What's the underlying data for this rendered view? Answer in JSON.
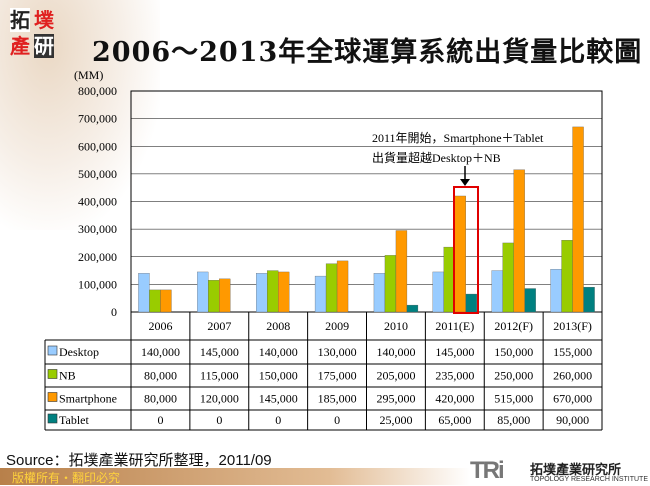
{
  "logo": {
    "text": "拓墣產研"
  },
  "title": "2006～2013年全球運算系統出貨量比較圖",
  "chart_data": {
    "type": "bar",
    "title": "2006～2013年全球運算系統出貨量比較圖",
    "ylabel": "(MM)",
    "ylim": [
      0,
      800000
    ],
    "yticks": [
      "0",
      "100,000",
      "200,000",
      "300,000",
      "400,000",
      "500,000",
      "600,000",
      "700,000",
      "800,000"
    ],
    "grid": true,
    "legend": "data-table",
    "categories": [
      "2006",
      "2007",
      "2008",
      "2009",
      "2010",
      "2011(E)",
      "2012(F)",
      "2013(F)"
    ],
    "series": [
      {
        "name": "Desktop",
        "color": "#99ccff",
        "values": [
          140000,
          145000,
          140000,
          130000,
          140000,
          145000,
          150000,
          155000
        ],
        "labels": [
          "140,000",
          "145,000",
          "140,000",
          "130,000",
          "140,000",
          "145,000",
          "150,000",
          "155,000"
        ]
      },
      {
        "name": "NB",
        "color": "#99cc00",
        "values": [
          80000,
          115000,
          150000,
          175000,
          205000,
          235000,
          250000,
          260000
        ],
        "labels": [
          "80,000",
          "115,000",
          "150,000",
          "175,000",
          "205,000",
          "235,000",
          "250,000",
          "260,000"
        ]
      },
      {
        "name": "Smartphone",
        "color": "#ff9900",
        "values": [
          80000,
          120000,
          145000,
          185000,
          295000,
          420000,
          515000,
          670000
        ],
        "labels": [
          "80,000",
          "120,000",
          "145,000",
          "185,000",
          "295,000",
          "420,000",
          "515,000",
          "670,000"
        ]
      },
      {
        "name": "Tablet",
        "color": "#008080",
        "values": [
          0,
          0,
          0,
          0,
          25000,
          65000,
          85000,
          90000
        ],
        "labels": [
          "0",
          "0",
          "0",
          "0",
          "25,000",
          "65,000",
          "85,000",
          "90,000"
        ]
      }
    ],
    "annotation": {
      "lines": [
        "2011年開始，Smartphone＋Tablet",
        "出貨量超越Desktop＋NB"
      ],
      "highlight": "2011(E) Smartphone"
    }
  },
  "source": "Source：拓墣產業研究所整理，2011/09",
  "footer": "版權所有・翻印必究",
  "brand": {
    "mark": "TRi",
    "name": "拓墣產業研究所",
    "english": "TOPOLOGY RESEARCH INSTITUTE"
  }
}
